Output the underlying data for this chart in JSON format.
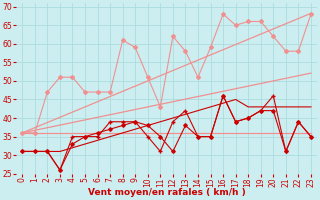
{
  "xlabel": "Vent moyen/en rafales ( km/h )",
  "background_color": "#cceef0",
  "grid_color": "#aadddd",
  "xlim": [
    -0.5,
    23.5
  ],
  "ylim": [
    25,
    71
  ],
  "yticks": [
    25,
    30,
    35,
    40,
    45,
    50,
    55,
    60,
    65,
    70
  ],
  "xticks": [
    0,
    1,
    2,
    3,
    4,
    5,
    6,
    7,
    8,
    9,
    10,
    11,
    12,
    13,
    14,
    15,
    16,
    17,
    18,
    19,
    20,
    21,
    22,
    23
  ],
  "tick_color": "#cc0000",
  "label_color": "#cc0000",
  "label_fontsize": 6.5,
  "tick_fontsize": 5.5,
  "lines": [
    {
      "x": [
        0,
        1,
        2,
        3,
        4,
        5,
        6,
        7,
        8,
        9,
        10,
        11,
        12,
        13,
        14,
        15,
        16,
        17,
        18,
        19,
        20,
        21,
        22,
        23
      ],
      "y": [
        36,
        36,
        36,
        36,
        36,
        36,
        36,
        36,
        36,
        36,
        36,
        36,
        36,
        36,
        36,
        36,
        36,
        36,
        36,
        36,
        36,
        36,
        36,
        36
      ],
      "color": "#f09090",
      "lw": 0.9,
      "marker": null,
      "ms": 0,
      "zorder": 2
    },
    {
      "x": [
        0,
        1,
        2,
        3,
        4,
        5,
        6,
        7,
        8,
        9,
        10,
        11,
        12,
        13,
        14,
        15,
        16,
        17,
        18,
        19,
        20,
        21,
        22,
        23
      ],
      "y": [
        36,
        36.7,
        37.4,
        38.1,
        38.8,
        39.5,
        40.2,
        40.9,
        41.6,
        42.3,
        43,
        43.7,
        44.4,
        45.1,
        45.8,
        46.5,
        47.2,
        47.9,
        48.6,
        49.3,
        50,
        50.7,
        51.4,
        52.1
      ],
      "color": "#f09090",
      "lw": 0.9,
      "marker": null,
      "ms": 0,
      "zorder": 2
    },
    {
      "x": [
        0,
        1,
        2,
        3,
        4,
        5,
        6,
        7,
        8,
        9,
        10,
        11,
        12,
        13,
        14,
        15,
        16,
        17,
        18,
        19,
        20,
        21,
        22,
        23
      ],
      "y": [
        36,
        37.4,
        38.8,
        40.2,
        41.6,
        43,
        44.4,
        45.8,
        47.2,
        48.6,
        50,
        51.4,
        52.8,
        54.2,
        55.6,
        57,
        58.4,
        59.8,
        61.2,
        62.6,
        64,
        65.4,
        66.8,
        68.2
      ],
      "color": "#f09090",
      "lw": 0.9,
      "marker": null,
      "ms": 0,
      "zorder": 2
    },
    {
      "x": [
        0,
        1,
        2,
        3,
        4,
        5,
        6,
        7,
        8,
        9,
        10,
        11,
        12,
        13,
        14,
        15,
        16,
        17,
        18,
        19,
        20,
        21,
        22,
        23
      ],
      "y": [
        36,
        36,
        47,
        51,
        51,
        47,
        47,
        47,
        61,
        59,
        51,
        43,
        62,
        58,
        51,
        59,
        68,
        65,
        66,
        66,
        62,
        58,
        58,
        68
      ],
      "color": "#f09090",
      "lw": 0.8,
      "marker": "D",
      "ms": 2,
      "zorder": 3
    },
    {
      "x": [
        0,
        1,
        2,
        3,
        4,
        5,
        6,
        7,
        8,
        9,
        10,
        11,
        12,
        13,
        14,
        15,
        16,
        17,
        18,
        19,
        20,
        21,
        22,
        23
      ],
      "y": [
        31,
        31,
        31,
        26,
        35,
        35,
        35,
        39,
        39,
        39,
        35,
        31,
        39,
        42,
        35,
        35,
        46,
        39,
        40,
        42,
        46,
        31,
        39,
        35
      ],
      "color": "#cc0000",
      "lw": 0.8,
      "marker": "+",
      "ms": 3,
      "zorder": 4
    },
    {
      "x": [
        0,
        1,
        2,
        3,
        4,
        5,
        6,
        7,
        8,
        9,
        10,
        11,
        12,
        13,
        14,
        15,
        16,
        17,
        18,
        19,
        20,
        21,
        22,
        23
      ],
      "y": [
        31,
        31,
        31,
        31,
        32,
        33,
        34,
        35,
        36,
        37,
        38,
        39,
        40,
        41,
        42,
        43,
        44,
        45,
        43,
        43,
        43,
        43,
        43,
        43
      ],
      "color": "#cc0000",
      "lw": 0.8,
      "marker": null,
      "ms": 0,
      "zorder": 3
    },
    {
      "x": [
        0,
        1,
        2,
        3,
        4,
        5,
        6,
        7,
        8,
        9,
        10,
        11,
        12,
        13,
        14,
        15,
        16,
        17,
        18,
        19,
        20,
        21,
        22,
        23
      ],
      "y": [
        31,
        31,
        31,
        26,
        33,
        35,
        36,
        37,
        38,
        39,
        38,
        35,
        31,
        38,
        35,
        35,
        46,
        39,
        40,
        42,
        42,
        31,
        39,
        35
      ],
      "color": "#cc0000",
      "lw": 0.8,
      "marker": "D",
      "ms": 1.8,
      "zorder": 4
    }
  ]
}
